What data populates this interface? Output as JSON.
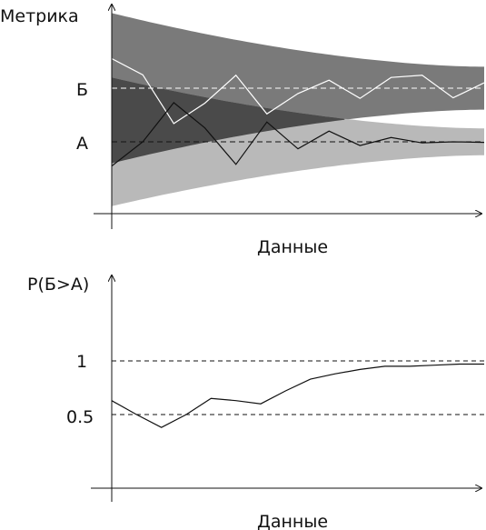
{
  "chart_data": [
    {
      "type": "line",
      "ylabel": "Метрика",
      "xlabel": "Данные",
      "y_tick_labels": [
        "Б",
        "А"
      ],
      "reference_lines": [
        {
          "label": "Б",
          "y": 1.0,
          "style": "dashed",
          "color": "#ffffff"
        },
        {
          "label": "А",
          "y": 0.0,
          "style": "dashed",
          "color": "#111111"
        }
      ],
      "x": [
        0,
        1,
        2,
        3,
        4,
        5,
        6,
        7,
        8,
        9,
        10,
        11,
        12
      ],
      "series": [
        {
          "label": "Б",
          "color": "#ffffff",
          "values": [
            1.55,
            1.25,
            0.34,
            0.72,
            1.24,
            0.52,
            0.9,
            1.15,
            0.81,
            1.2,
            1.24,
            0.82,
            1.1
          ],
          "band": {
            "color": "#7a7a7a",
            "halfwidth_start": 1.4,
            "halfwidth_end": 0.4
          }
        },
        {
          "label": "А",
          "color": "#111111",
          "values": [
            -0.45,
            0.0,
            0.73,
            0.26,
            -0.42,
            0.37,
            -0.13,
            0.2,
            -0.07,
            0.08,
            -0.02,
            0.0,
            -0.01
          ],
          "band": {
            "color": "#b9b9b9",
            "halfwidth_start": 1.2,
            "halfwidth_end": 0.25
          }
        }
      ],
      "overlap_color": "#4a4a4a"
    },
    {
      "type": "line",
      "ylabel": "P(Б>А)",
      "xlabel": "Данные",
      "y_ticks": [
        0.5,
        1
      ],
      "y_tick_labels": [
        "0.5",
        "1"
      ],
      "reference_lines": [
        {
          "label": "1",
          "y": 1.0,
          "style": "dashed",
          "color": "#111111"
        },
        {
          "label": "0.5",
          "y": 0.5,
          "style": "dashed",
          "color": "#111111"
        }
      ],
      "x": [
        0,
        1,
        2,
        3,
        4,
        5,
        6,
        7,
        8,
        9,
        10,
        11,
        12,
        13,
        14,
        15
      ],
      "series": [
        {
          "label": "P(Б>А)",
          "color": "#111111",
          "values": [
            0.63,
            0.5,
            0.38,
            0.5,
            0.65,
            0.63,
            0.6,
            0.72,
            0.83,
            0.88,
            0.92,
            0.95,
            0.95,
            0.96,
            0.97,
            0.97
          ]
        }
      ]
    }
  ]
}
